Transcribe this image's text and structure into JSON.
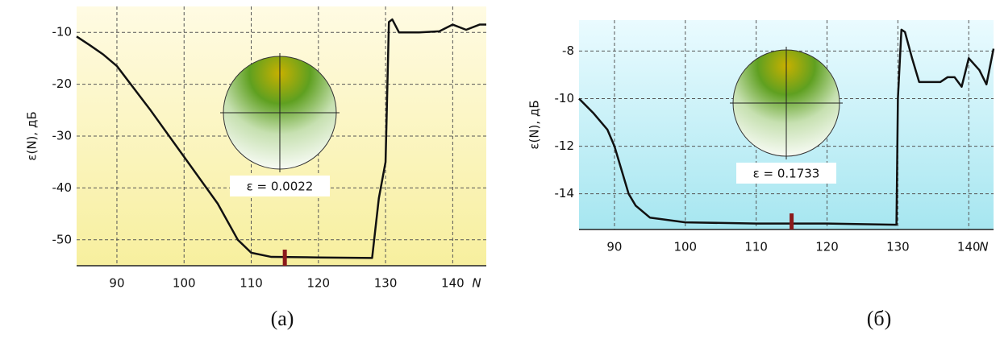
{
  "chart_data": [
    {
      "type": "line",
      "ylabel": "ε(N), дБ",
      "xlabel": "N",
      "annotation": "ε = 0.0022",
      "caption": "(a)",
      "x": [
        84,
        86,
        88,
        90,
        95,
        100,
        105,
        108,
        110,
        113,
        120,
        128,
        129,
        130,
        130.5,
        131,
        132,
        135,
        138,
        140,
        142,
        144,
        145
      ],
      "values": [
        -10.8,
        -12.5,
        -14.3,
        -16.5,
        -25,
        -34,
        -43,
        -50,
        -52.5,
        -53.3,
        -53.4,
        -53.5,
        -42,
        -35,
        -8,
        -7.5,
        -10,
        -10,
        -9.8,
        -8.5,
        -9.5,
        -8.5,
        -8.5
      ],
      "color": "#111111",
      "marker_x": 115,
      "marker_color": "#8b1a1a",
      "xlim": [
        84,
        145
      ],
      "ylim": [
        -55,
        -5
      ],
      "xticks": [
        90,
        100,
        110,
        120,
        130,
        140
      ],
      "yticks": [
        -50,
        -40,
        -30,
        -20,
        -10
      ],
      "grid": true
    },
    {
      "type": "line",
      "ylabel": "ε(N), дБ",
      "xlabel": "N",
      "annotation": "ε = 0.1733",
      "caption": "(б)",
      "x": [
        85,
        87,
        89,
        90,
        91,
        92,
        93,
        95,
        100,
        110,
        120,
        129.8,
        130,
        130.5,
        131,
        132,
        133,
        136,
        137,
        138,
        139,
        140,
        141.5,
        142.5,
        143.5
      ],
      "values": [
        -10,
        -10.6,
        -11.3,
        -12,
        -13,
        -14,
        -14.5,
        -15,
        -15.2,
        -15.25,
        -15.25,
        -15.3,
        -10,
        -7.1,
        -7.2,
        -8.3,
        -9.3,
        -9.3,
        -9.1,
        -9.1,
        -9.5,
        -8.3,
        -8.8,
        -9.4,
        -7.9
      ],
      "color": "#111111",
      "marker_x": 115,
      "marker_color": "#8b1a1a",
      "xlim": [
        85,
        143.5
      ],
      "ylim": [
        -15.5,
        -6.7
      ],
      "xticks": [
        90,
        100,
        110,
        120,
        130,
        140
      ],
      "yticks": [
        -14,
        -12,
        -10,
        -8
      ],
      "grid": true
    }
  ]
}
